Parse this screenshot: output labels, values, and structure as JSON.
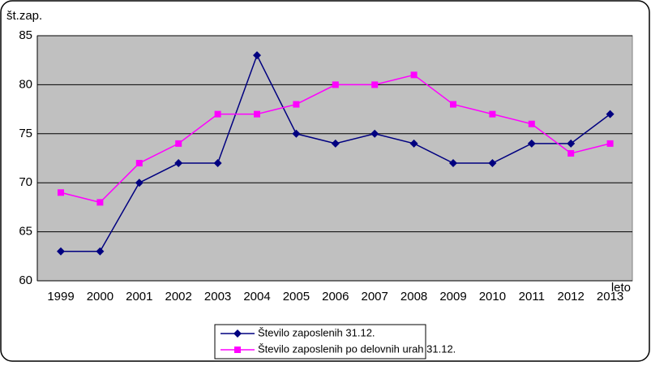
{
  "chart_data": {
    "type": "line",
    "y_label": "št.zap.",
    "x_label": "leto",
    "categories": [
      "1999",
      "2000",
      "2001",
      "2002",
      "2003",
      "2004",
      "2005",
      "2006",
      "2007",
      "2008",
      "2009",
      "2010",
      "2011",
      "2012",
      "2013"
    ],
    "series": [
      {
        "name": "Število zaposlenih   31.12.",
        "color": "#000080",
        "marker": "diamond",
        "values": [
          63,
          63,
          70,
          72,
          72,
          83,
          75,
          74,
          75,
          74,
          72,
          72,
          74,
          74,
          77
        ]
      },
      {
        "name": "Število zaposlenih po delovnih urah 31.12.",
        "color": "#ff00ff",
        "marker": "square",
        "values": [
          69,
          68,
          72,
          74,
          77,
          77,
          78,
          80,
          80,
          81,
          78,
          77,
          76,
          73,
          74
        ]
      }
    ],
    "ylim": [
      60,
      85
    ],
    "yticks": [
      60,
      65,
      70,
      75,
      80,
      85
    ],
    "grid": true,
    "legend": "bottom"
  }
}
